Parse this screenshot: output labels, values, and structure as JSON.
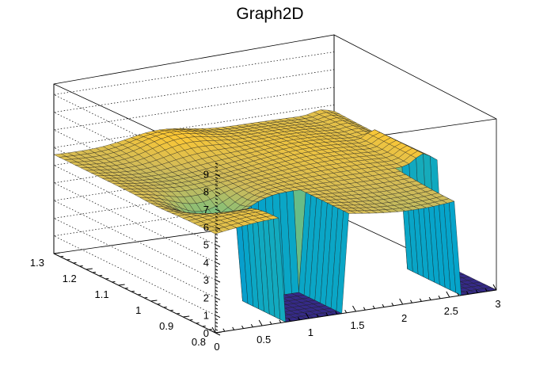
{
  "chart_data": {
    "type": "surface",
    "title": "Graph2D",
    "x_ticks": [
      "0",
      "0.5",
      "1",
      "1.5",
      "2",
      "2.5",
      "3"
    ],
    "y_ticks": [
      "0.8",
      "0.9",
      "1",
      "1.1",
      "1.2",
      "1.3"
    ],
    "z_ticks": [
      "0",
      "1",
      "2",
      "3",
      "4",
      "5",
      "6",
      "7",
      "8",
      "9"
    ],
    "xlim": [
      0,
      3
    ],
    "ylim": [
      0.8,
      1.3
    ],
    "zlim": [
      0,
      9.6
    ],
    "grid": true,
    "colormap": [
      "#352a87",
      "#0f5cdd",
      "#1481d6",
      "#06a4ca",
      "#2eb7a4",
      "#87bf77",
      "#d1bb59",
      "#fec832",
      "#f9fb0e"
    ]
  }
}
